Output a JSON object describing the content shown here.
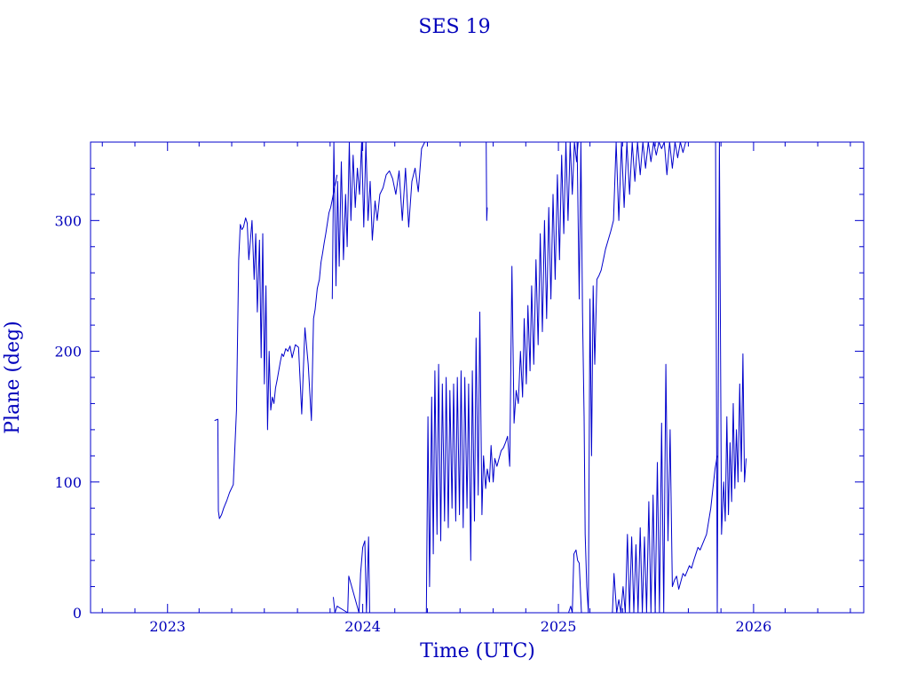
{
  "chart_data": {
    "type": "line",
    "title": "SES 19",
    "xlabel": "Time (UTC)",
    "ylabel": "Plane (deg)",
    "xlim": [
      "2022-08-10",
      "2026-07-26"
    ],
    "ylim": [
      0,
      360
    ],
    "x_ticks": [
      "2023",
      "2024",
      "2025",
      "2026"
    ],
    "y_ticks": [
      "0",
      "100",
      "200",
      "300"
    ],
    "grid": false,
    "legend": "none",
    "color": "#0000cc",
    "series": [
      {
        "x": [
          "2023-03-30",
          "2023-04-05",
          "2023-04-06",
          "2023-04-08",
          "2023-04-12",
          "2023-04-16",
          "2023-04-22",
          "2023-04-27",
          "2023-05-04",
          "2023-05-10",
          "2023-05-14",
          "2023-05-17",
          "2023-05-20",
          "2023-05-23",
          "2023-05-27",
          "2023-05-30",
          "2023-06-02",
          "2023-06-08",
          "2023-06-12",
          "2023-06-15",
          "2023-06-18",
          "2023-06-22",
          "2023-06-25",
          "2023-06-28",
          "2023-07-01",
          "2023-07-04",
          "2023-07-07",
          "2023-07-10",
          "2023-07-13",
          "2023-07-16",
          "2023-07-19",
          "2023-07-22",
          "2023-07-25",
          "2023-07-28",
          "2023-07-31",
          "2023-08-03",
          "2023-08-06",
          "2023-08-10",
          "2023-08-14",
          "2023-08-18",
          "2023-08-22",
          "2023-08-28",
          "2023-09-03",
          "2023-09-09",
          "2023-09-15",
          "2023-09-21",
          "2023-09-27",
          "2023-10-01",
          "2023-10-04",
          "2023-10-08",
          "2023-10-12",
          "2023-10-15",
          "2023-10-18",
          "2023-10-21",
          "2023-10-24",
          "2023-10-27",
          "2023-10-30",
          "2023-11-02",
          "2023-11-06",
          "2023-11-09",
          "2023-11-12",
          "2023-11-14"
        ],
        "y": [
          147,
          148,
          78,
          72,
          75,
          80,
          86,
          92,
          98,
          155,
          270,
          297,
          293,
          295,
          302,
          298,
          270,
          300,
          255,
          290,
          230,
          285,
          195,
          290,
          175,
          250,
          140,
          200,
          155,
          165,
          160,
          172,
          178,
          185,
          192,
          198,
          196,
          202,
          200,
          204,
          195,
          205,
          203,
          152,
          218,
          190,
          147,
          225,
          232,
          248,
          255,
          268,
          275,
          283,
          290,
          298,
          306,
          310,
          318,
          325,
          330,
          335
        ]
      },
      {
        "x": [
          "2023-11-05",
          "2023-11-08",
          "2023-11-12",
          "2023-11-15",
          "2023-11-18",
          "2023-11-22",
          "2023-11-26",
          "2023-11-30",
          "2023-12-03",
          "2023-12-07",
          "2023-12-10",
          "2023-12-14",
          "2023-12-18",
          "2023-12-22",
          "2023-12-26",
          "2023-12-30",
          "2024-01-03",
          "2024-01-07",
          "2024-01-11",
          "2024-01-15",
          "2024-01-19",
          "2024-01-24",
          "2024-01-28",
          "2024-02-02",
          "2024-02-08",
          "2024-02-14",
          "2024-02-20",
          "2024-02-26",
          "2024-03-03",
          "2024-03-09",
          "2024-03-15",
          "2024-03-21",
          "2024-03-27",
          "2024-04-02",
          "2024-04-08",
          "2024-04-14",
          "2024-04-20",
          "2024-04-26",
          "2024-04-30"
        ],
        "y": [
          240,
          360,
          250,
          330,
          265,
          345,
          270,
          320,
          280,
          360,
          300,
          350,
          310,
          340,
          320,
          360,
          295,
          360,
          300,
          330,
          285,
          315,
          300,
          320,
          325,
          335,
          338,
          332,
          320,
          338,
          300,
          340,
          295,
          330,
          340,
          322,
          355,
          360,
          360
        ]
      },
      {
        "x": [
          "2023-11-07",
          "2023-11-10",
          "2023-11-14",
          "2023-12-04",
          "2023-12-06",
          "2023-12-25",
          "2023-12-28",
          "2024-01-01",
          "2024-01-05",
          "2024-01-08",
          "2024-01-12",
          "2024-01-14"
        ],
        "y": [
          12,
          0,
          5,
          0,
          28,
          0,
          30,
          50,
          55,
          0,
          58,
          0
        ]
      },
      {
        "x": [
          "2024-04-29",
          "2024-05-02",
          "2024-05-05",
          "2024-05-09",
          "2024-05-12",
          "2024-05-15",
          "2024-05-19",
          "2024-05-22",
          "2024-05-26",
          "2024-05-29",
          "2024-06-02",
          "2024-06-05",
          "2024-06-09",
          "2024-06-12",
          "2024-06-16",
          "2024-06-19",
          "2024-06-23",
          "2024-06-26",
          "2024-06-30",
          "2024-07-03",
          "2024-07-07",
          "2024-07-10",
          "2024-07-14",
          "2024-07-17",
          "2024-07-21",
          "2024-07-24",
          "2024-07-28",
          "2024-07-31",
          "2024-08-04",
          "2024-08-07",
          "2024-08-11",
          "2024-08-14",
          "2024-08-18",
          "2024-08-21",
          "2024-08-25",
          "2024-08-28",
          "2024-09-01",
          "2024-09-04",
          "2024-09-08",
          "2024-09-12",
          "2024-09-16",
          "2024-09-20",
          "2024-09-24",
          "2024-09-28",
          "2024-10-02",
          "2024-10-06",
          "2024-10-10",
          "2024-10-14",
          "2024-10-18",
          "2024-10-22",
          "2024-10-26",
          "2024-10-29",
          "2024-11-02",
          "2024-11-05",
          "2024-11-09",
          "2024-11-12",
          "2024-11-16",
          "2024-11-20",
          "2024-11-24",
          "2024-11-28",
          "2024-12-02",
          "2024-12-06",
          "2024-12-10",
          "2024-12-14",
          "2024-12-18",
          "2024-12-22",
          "2024-12-26",
          "2024-12-30",
          "2025-01-03",
          "2025-01-07",
          "2025-01-11",
          "2025-01-15",
          "2025-01-19",
          "2025-01-23",
          "2025-01-27",
          "2025-01-31",
          "2025-02-04",
          "2025-02-07",
          "2025-02-10"
        ],
        "y": [
          0,
          150,
          20,
          165,
          45,
          185,
          60,
          190,
          55,
          175,
          70,
          180,
          65,
          170,
          80,
          175,
          70,
          180,
          75,
          185,
          65,
          180,
          80,
          175,
          40,
          185,
          70,
          210,
          90,
          230,
          75,
          120,
          95,
          110,
          100,
          128,
          100,
          118,
          112,
          118,
          124,
          126,
          130,
          135,
          112,
          265,
          145,
          170,
          160,
          200,
          165,
          225,
          175,
          235,
          185,
          250,
          190,
          270,
          205,
          290,
          215,
          300,
          225,
          310,
          240,
          320,
          255,
          335,
          270,
          350,
          290,
          360,
          300,
          360,
          320,
          360,
          345,
          360,
          360
        ]
      },
      {
        "x": [
          "2025-02-05",
          "2025-02-09",
          "2025-02-12",
          "2025-02-15",
          "2025-02-18",
          "2025-02-20",
          "2025-02-23",
          "2025-02-26",
          "2025-03-01",
          "2025-03-04",
          "2025-03-07",
          "2025-03-10",
          "2025-03-14",
          "2025-03-18",
          "2025-03-22",
          "2025-03-26",
          "2025-03-30",
          "2025-04-04",
          "2025-04-09",
          "2025-04-14",
          "2025-04-19",
          "2025-04-24",
          "2025-04-29",
          "2025-05-04",
          "2025-05-09",
          "2025-05-14",
          "2025-05-19",
          "2025-05-24",
          "2025-05-29",
          "2025-06-03",
          "2025-06-08",
          "2025-06-13",
          "2025-06-18",
          "2025-06-23",
          "2025-06-28",
          "2025-07-03",
          "2025-07-08",
          "2025-07-13",
          "2025-07-18",
          "2025-07-23",
          "2025-07-28",
          "2025-08-02",
          "2025-08-07",
          "2025-08-12",
          "2025-08-17",
          "2025-08-22",
          "2025-08-27"
        ],
        "y": [
          360,
          240,
          360,
          230,
          150,
          60,
          20,
          0,
          240,
          120,
          250,
          190,
          255,
          258,
          262,
          270,
          278,
          285,
          292,
          300,
          360,
          300,
          360,
          310,
          360,
          320,
          360,
          330,
          360,
          335,
          360,
          340,
          360,
          345,
          360,
          350,
          360,
          355,
          360,
          335,
          360,
          340,
          360,
          348,
          360,
          352,
          360
        ]
      },
      {
        "x": [
          "2024-08-19",
          "2024-08-20",
          "2024-08-21"
        ],
        "y": [
          360,
          300,
          310
        ]
      },
      {
        "x": [
          "2025-01-20",
          "2025-01-24",
          "2025-01-27",
          "2025-01-30",
          "2025-02-03",
          "2025-02-06",
          "2025-02-09",
          "2025-02-13"
        ],
        "y": [
          0,
          5,
          0,
          45,
          48,
          40,
          38,
          0
        ]
      },
      {
        "x": [
          "2025-04-12",
          "2025-04-15",
          "2025-04-20",
          "2025-04-24",
          "2025-04-28",
          "2025-05-02",
          "2025-05-06",
          "2025-05-10",
          "2025-05-14",
          "2025-05-18",
          "2025-05-22",
          "2025-05-26",
          "2025-05-30",
          "2025-06-03",
          "2025-06-07",
          "2025-06-11",
          "2025-06-15",
          "2025-06-19",
          "2025-06-23",
          "2025-06-27",
          "2025-07-01",
          "2025-07-05",
          "2025-07-09",
          "2025-07-13",
          "2025-07-17",
          "2025-07-21",
          "2025-07-25",
          "2025-07-29",
          "2025-08-02",
          "2025-08-06",
          "2025-08-10",
          "2025-08-14",
          "2025-08-18",
          "2025-08-22",
          "2025-08-26",
          "2025-08-30",
          "2025-09-03",
          "2025-09-07",
          "2025-09-11",
          "2025-09-15",
          "2025-09-19",
          "2025-09-23",
          "2025-09-27",
          "2025-10-01",
          "2025-10-05",
          "2025-10-09",
          "2025-10-13",
          "2025-10-17",
          "2025-10-21",
          "2025-10-25"
        ],
        "y": [
          0,
          30,
          0,
          10,
          0,
          20,
          0,
          60,
          0,
          58,
          0,
          52,
          0,
          65,
          0,
          58,
          0,
          85,
          0,
          90,
          0,
          115,
          0,
          145,
          0,
          190,
          55,
          140,
          20,
          25,
          28,
          18,
          24,
          30,
          28,
          32,
          36,
          34,
          40,
          45,
          50,
          48,
          52,
          56,
          60,
          70,
          80,
          95,
          110,
          120
        ]
      },
      {
        "x": [
          "2025-10-22",
          "2025-10-25",
          "2025-10-29",
          "2025-11-02",
          "2025-11-06",
          "2025-11-09",
          "2025-11-12",
          "2025-11-15",
          "2025-11-18",
          "2025-11-21",
          "2025-11-24",
          "2025-11-27",
          "2025-11-30",
          "2025-12-03",
          "2025-12-06",
          "2025-12-09",
          "2025-12-12",
          "2025-12-15",
          "2025-12-18"
        ],
        "y": [
          360,
          0,
          360,
          60,
          100,
          70,
          150,
          75,
          130,
          85,
          160,
          95,
          140,
          100,
          175,
          108,
          198,
          100,
          118
        ]
      }
    ]
  }
}
